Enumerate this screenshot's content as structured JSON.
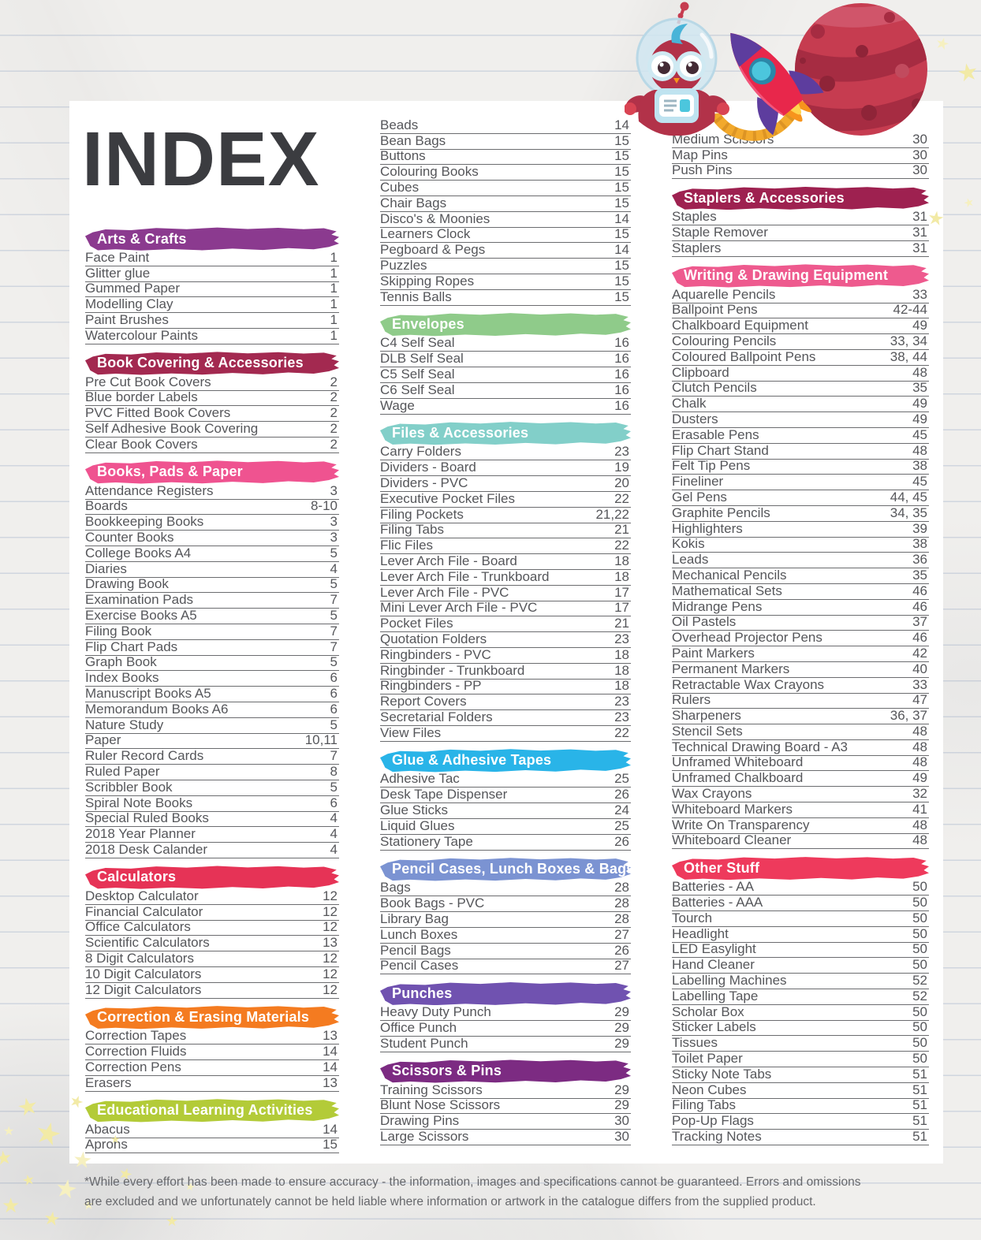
{
  "page": {
    "title": "INDEX",
    "footnote_line1": "*While every effort has been made to ensure accuracy - the information, images and specifications cannot be guaranteed. Errors and omissions",
    "footnote_line2": "are excluded and we unfortunately cannot be held liable where information or artwork in the catalogue differs from the supplied product."
  },
  "illustrations": {
    "owl": "owl-astronaut",
    "rocket": "rocket",
    "planet": "planet",
    "stars": "yellow-stars"
  },
  "columns": [
    {
      "sections": [
        {
          "title": "Arts & Crafts",
          "color": "#8b3a8f",
          "items": [
            {
              "label": "Face Paint",
              "page": "1"
            },
            {
              "label": "Glitter glue",
              "page": "1"
            },
            {
              "label": "Gummed Paper",
              "page": "1"
            },
            {
              "label": "Modelling Clay",
              "page": "1"
            },
            {
              "label": "Paint Brushes",
              "page": "1"
            },
            {
              "label": "Watercolour Paints",
              "page": "1"
            }
          ]
        },
        {
          "title": "Book Covering & Accessories",
          "color": "#a32950",
          "items": [
            {
              "label": "Pre Cut Book Covers",
              "page": "2"
            },
            {
              "label": "Blue border Labels",
              "page": "2"
            },
            {
              "label": "PVC Fitted Book Covers",
              "page": "2"
            },
            {
              "label": "Self Adhesive Book Covering",
              "page": "2"
            },
            {
              "label": "Clear Book Covers",
              "page": "2"
            }
          ]
        },
        {
          "title": "Books, Pads & Paper",
          "color": "#ef5390",
          "items": [
            {
              "label": "Attendance Registers",
              "page": "3"
            },
            {
              "label": "Boards",
              "page": "8-10"
            },
            {
              "label": "Bookkeeping Books",
              "page": "3"
            },
            {
              "label": "Counter Books",
              "page": "3"
            },
            {
              "label": "College Books A4",
              "page": "5"
            },
            {
              "label": "Diaries",
              "page": "4"
            },
            {
              "label": "Drawing Book",
              "page": "5"
            },
            {
              "label": "Examination Pads",
              "page": "7"
            },
            {
              "label": "Exercise Books A5",
              "page": "5"
            },
            {
              "label": "Filing Book",
              "page": "7"
            },
            {
              "label": "Flip Chart Pads",
              "page": "7"
            },
            {
              "label": "Graph Book",
              "page": "5"
            },
            {
              "label": "Index Books",
              "page": "6"
            },
            {
              "label": "Manuscript Books A5",
              "page": "6"
            },
            {
              "label": "Memorandum Books A6",
              "page": "6"
            },
            {
              "label": "Nature Study",
              "page": "5"
            },
            {
              "label": "Paper",
              "page": "10,11"
            },
            {
              "label": "Ruler Record Cards",
              "page": "7"
            },
            {
              "label": "Ruled Paper",
              "page": "8"
            },
            {
              "label": "Scribbler Book",
              "page": "5"
            },
            {
              "label": "Spiral Note Books",
              "page": "6"
            },
            {
              "label": "Special Ruled Books",
              "page": "4"
            },
            {
              "label": "2018 Year Planner",
              "page": "4"
            },
            {
              "label": "2018 Desk Calander",
              "page": "4"
            }
          ]
        },
        {
          "title": "Calculators",
          "color": "#e63356",
          "items": [
            {
              "label": "Desktop Calculator",
              "page": "12"
            },
            {
              "label": "Financial Calculator",
              "page": "12"
            },
            {
              "label": "Office Calculators",
              "page": "12"
            },
            {
              "label": "Scientific Calculators",
              "page": "13"
            },
            {
              "label": "8 Digit Calculators",
              "page": "12"
            },
            {
              "label": "10 Digit Calculators",
              "page": "12"
            },
            {
              "label": "12 Digit Calculators",
              "page": "12"
            }
          ]
        },
        {
          "title": "Correction & Erasing Materials",
          "color": "#f47b20",
          "items": [
            {
              "label": "Correction Tapes",
              "page": "13"
            },
            {
              "label": "Correction Fluids",
              "page": "14"
            },
            {
              "label": "Correction Pens",
              "page": "14"
            },
            {
              "label": "Erasers",
              "page": "13"
            }
          ]
        },
        {
          "title": "Educational Learning Activities",
          "color": "#b3cb38",
          "items": [
            {
              "label": "Abacus",
              "page": "14"
            },
            {
              "label": "Aprons",
              "page": "15"
            }
          ]
        }
      ]
    },
    {
      "sections": [
        {
          "title": null,
          "color": null,
          "items": [
            {
              "label": "Beads",
              "page": "14"
            },
            {
              "label": "Bean Bags",
              "page": "15"
            },
            {
              "label": "Buttons",
              "page": "15"
            },
            {
              "label": "Colouring Books",
              "page": "15"
            },
            {
              "label": "Cubes",
              "page": "15"
            },
            {
              "label": "Chair Bags",
              "page": "15"
            },
            {
              "label": "Disco's & Moonies",
              "page": "14"
            },
            {
              "label": "Learners Clock",
              "page": "15"
            },
            {
              "label": "Pegboard & Pegs",
              "page": "14"
            },
            {
              "label": "Puzzles",
              "page": "15"
            },
            {
              "label": "Skipping Ropes",
              "page": "15"
            },
            {
              "label": "Tennis Balls",
              "page": "15"
            }
          ]
        },
        {
          "title": "Envelopes",
          "color": "#8fcb8a",
          "items": [
            {
              "label": "C4 Self Seal",
              "page": "16"
            },
            {
              "label": "DLB Self Seal",
              "page": "16"
            },
            {
              "label": "C5 Self Seal",
              "page": "16"
            },
            {
              "label": "C6 Self Seal",
              "page": "16"
            },
            {
              "label": "Wage",
              "page": "16"
            }
          ]
        },
        {
          "title": "Files & Accessories",
          "color": "#82cfc9",
          "items": [
            {
              "label": "Carry Folders",
              "page": "23"
            },
            {
              "label": "Dividers - Board",
              "page": "19"
            },
            {
              "label": "Dividers - PVC",
              "page": "20"
            },
            {
              "label": "Executive Pocket Files",
              "page": "22"
            },
            {
              "label": "Filing Pockets",
              "page": "21,22"
            },
            {
              "label": "Filing Tabs",
              "page": "21"
            },
            {
              "label": "Flic Files",
              "page": "22"
            },
            {
              "label": "Lever Arch File - Board",
              "page": "18"
            },
            {
              "label": "Lever Arch File - Trunkboard",
              "page": "18"
            },
            {
              "label": "Lever Arch File - PVC",
              "page": "17"
            },
            {
              "label": "Mini Lever Arch File - PVC",
              "page": "17"
            },
            {
              "label": "Pocket Files",
              "page": "21"
            },
            {
              "label": "Quotation Folders",
              "page": "23"
            },
            {
              "label": "Ringbinders - PVC",
              "page": "18"
            },
            {
              "label": "Ringbinder - Trunkboard",
              "page": "18"
            },
            {
              "label": "Ringbinders - PP",
              "page": "18"
            },
            {
              "label": "Report Covers",
              "page": "23"
            },
            {
              "label": "Secretarial Folders",
              "page": "23"
            },
            {
              "label": "View Files",
              "page": "22"
            }
          ]
        },
        {
          "title": "Glue & Adhesive Tapes",
          "color": "#29b4e8",
          "items": [
            {
              "label": "Adhesive Tac",
              "page": "25"
            },
            {
              "label": "Desk Tape Dispenser",
              "page": "26"
            },
            {
              "label": "Glue Sticks",
              "page": "24"
            },
            {
              "label": "Liquid Glues",
              "page": "25"
            },
            {
              "label": "Stationery Tape",
              "page": "26"
            }
          ]
        },
        {
          "title": "Pencil Cases, Lunch Boxes & Bags",
          "color": "#7b93d2",
          "items": [
            {
              "label": "Bags",
              "page": "28"
            },
            {
              "label": "Book Bags - PVC",
              "page": "28"
            },
            {
              "label": "Library Bag",
              "page": "28"
            },
            {
              "label": "Lunch Boxes",
              "page": "27"
            },
            {
              "label": "Pencil Bags",
              "page": "26"
            },
            {
              "label": "Pencil Cases",
              "page": "27"
            }
          ]
        },
        {
          "title": "Punches",
          "color": "#7052b0",
          "items": [
            {
              "label": "Heavy Duty Punch",
              "page": "29"
            },
            {
              "label": "Office Punch",
              "page": "29"
            },
            {
              "label": "Student Punch",
              "page": "29"
            }
          ]
        },
        {
          "title": "Scissors & Pins",
          "color": "#7c2b82",
          "items": [
            {
              "label": "Training Scissors",
              "page": "29"
            },
            {
              "label": "Blunt Nose Scissors",
              "page": "29"
            },
            {
              "label": "Drawing Pins",
              "page": "30"
            },
            {
              "label": "Large Scissors",
              "page": "30"
            }
          ]
        }
      ]
    },
    {
      "sections": [
        {
          "title": null,
          "color": null,
          "items": [
            {
              "label": "Medium Scissors",
              "page": "30"
            },
            {
              "label": "Map Pins",
              "page": "30"
            },
            {
              "label": "Push Pins",
              "page": "30"
            }
          ]
        },
        {
          "title": "Staplers & Accessories",
          "color": "#9e2150",
          "items": [
            {
              "label": "Staples",
              "page": "31"
            },
            {
              "label": "Staple Remover",
              "page": "31"
            },
            {
              "label": "Staplers",
              "page": "31"
            }
          ]
        },
        {
          "title": "Writing & Drawing Equipment",
          "color": "#ee5a8e",
          "items": [
            {
              "label": "Aquarelle Pencils",
              "page": "33"
            },
            {
              "label": "Ballpoint Pens",
              "page": "42-44"
            },
            {
              "label": "Chalkboard Equipment",
              "page": "49"
            },
            {
              "label": "Colouring Pencils",
              "page": "33, 34"
            },
            {
              "label": "Coloured Ballpoint Pens",
              "page": "38, 44"
            },
            {
              "label": "Clipboard",
              "page": "48"
            },
            {
              "label": "Clutch Pencils",
              "page": "35"
            },
            {
              "label": "Chalk",
              "page": "49"
            },
            {
              "label": "Dusters",
              "page": "49"
            },
            {
              "label": "Erasable Pens",
              "page": "45"
            },
            {
              "label": "Flip Chart Stand",
              "page": "48"
            },
            {
              "label": "Felt Tip Pens",
              "page": "38"
            },
            {
              "label": "Fineliner",
              "page": "45"
            },
            {
              "label": "Gel Pens",
              "page": "44, 45"
            },
            {
              "label": "Graphite Pencils",
              "page": "34, 35"
            },
            {
              "label": "Highlighters",
              "page": "39"
            },
            {
              "label": "Kokis",
              "page": "38"
            },
            {
              "label": "Leads",
              "page": "36"
            },
            {
              "label": "Mechanical Pencils",
              "page": "35"
            },
            {
              "label": "Mathematical Sets",
              "page": "46"
            },
            {
              "label": "Midrange Pens",
              "page": "46"
            },
            {
              "label": "Oil Pastels",
              "page": "37"
            },
            {
              "label": "Overhead Projector Pens",
              "page": "46"
            },
            {
              "label": "Paint Markers",
              "page": "42"
            },
            {
              "label": "Permanent Markers",
              "page": "40"
            },
            {
              "label": "Retractable Wax Crayons",
              "page": "33"
            },
            {
              "label": "Rulers",
              "page": "47"
            },
            {
              "label": "Sharpeners",
              "page": "36, 37"
            },
            {
              "label": "Stencil Sets",
              "page": "48"
            },
            {
              "label": "Technical Drawing Board - A3",
              "page": "48"
            },
            {
              "label": "Unframed Whiteboard",
              "page": "48"
            },
            {
              "label": "Unframed Chalkboard",
              "page": "49"
            },
            {
              "label": "Wax Crayons",
              "page": "32"
            },
            {
              "label": "Whiteboard Markers",
              "page": "41"
            },
            {
              "label": "Write On Transparency",
              "page": "48"
            },
            {
              "label": "Whiteboard Cleaner",
              "page": "48"
            }
          ]
        },
        {
          "title": "Other Stuff",
          "color": "#ee3a5c",
          "items": [
            {
              "label": "Batteries - AA",
              "page": "50"
            },
            {
              "label": "Batteries - AAA",
              "page": "50"
            },
            {
              "label": "Tourch",
              "page": "50"
            },
            {
              "label": "Headlight",
              "page": "50"
            },
            {
              "label": "LED Easylight",
              "page": "50"
            },
            {
              "label": "Hand Cleaner",
              "page": "50"
            },
            {
              "label": "Labelling Machines",
              "page": "52"
            },
            {
              "label": "Labelling Tape",
              "page": "52"
            },
            {
              "label": "Scholar Box",
              "page": "50"
            },
            {
              "label": "Sticker Labels",
              "page": "50"
            },
            {
              "label": "Tissues",
              "page": "50"
            },
            {
              "label": "Toilet Paper",
              "page": "50"
            },
            {
              "label": "Sticky Note Tabs",
              "page": "51"
            },
            {
              "label": "Neon Cubes",
              "page": "51"
            },
            {
              "label": "Filing Tabs",
              "page": "51"
            },
            {
              "label": "Pop-Up Flags",
              "page": "51"
            },
            {
              "label": "Tracking Notes",
              "page": "51"
            }
          ]
        }
      ]
    }
  ]
}
